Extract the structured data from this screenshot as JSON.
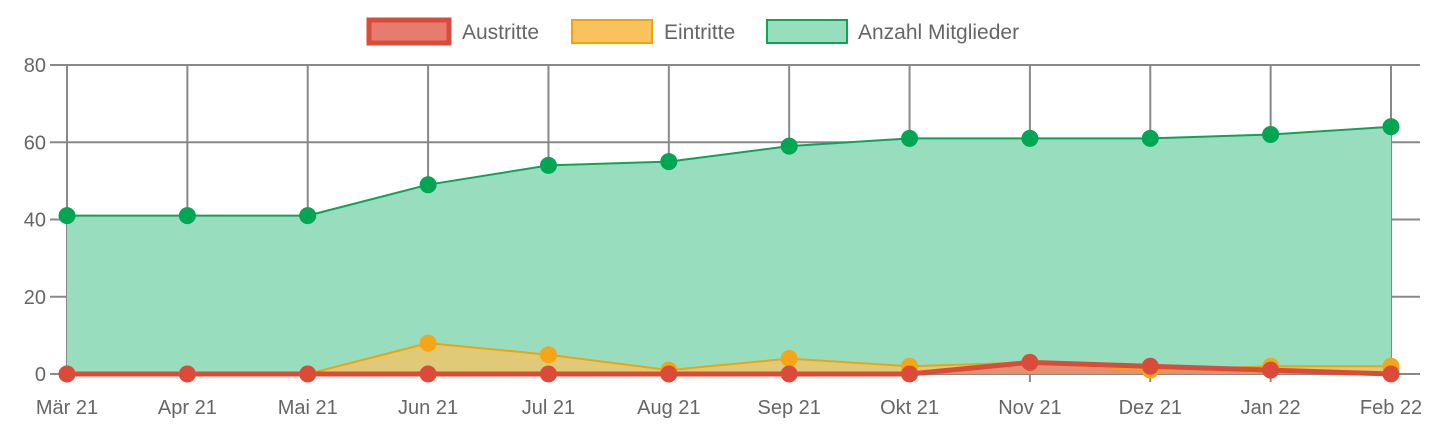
{
  "chart_data": {
    "type": "area",
    "categories": [
      "Mär 21",
      "Apr 21",
      "Mai 21",
      "Jun 21",
      "Jul 21",
      "Aug 21",
      "Sep 21",
      "Okt 21",
      "Nov 21",
      "Dez 21",
      "Jan 22",
      "Feb 22"
    ],
    "ylim": [
      0,
      80
    ],
    "yticks": [
      "0",
      "20",
      "40",
      "60",
      "80"
    ],
    "grid": true,
    "legend_position": "top-center",
    "series": [
      {
        "name": "Austritte",
        "values": [
          0,
          0,
          0,
          0,
          0,
          0,
          0,
          0,
          3,
          2,
          1,
          0
        ],
        "line_color": "#db4b3a",
        "fill_color": "#e77b70",
        "point_color": "#db4b3a"
      },
      {
        "name": "Eintritte",
        "values": [
          0,
          0,
          0,
          8,
          5,
          1,
          4,
          2,
          3,
          1,
          2,
          2
        ],
        "line_color": "#f0a30a",
        "fill_color": "#f8c35f",
        "point_color": "#f5a516"
      },
      {
        "name": "Anzahl Mitglieder",
        "values": [
          41,
          41,
          41,
          49,
          54,
          55,
          59,
          61,
          61,
          61,
          62,
          64
        ],
        "line_color": "#0fa35a",
        "fill_color": "#99ddbf",
        "point_color": "#00a651"
      }
    ],
    "grid_color": "#888888"
  }
}
